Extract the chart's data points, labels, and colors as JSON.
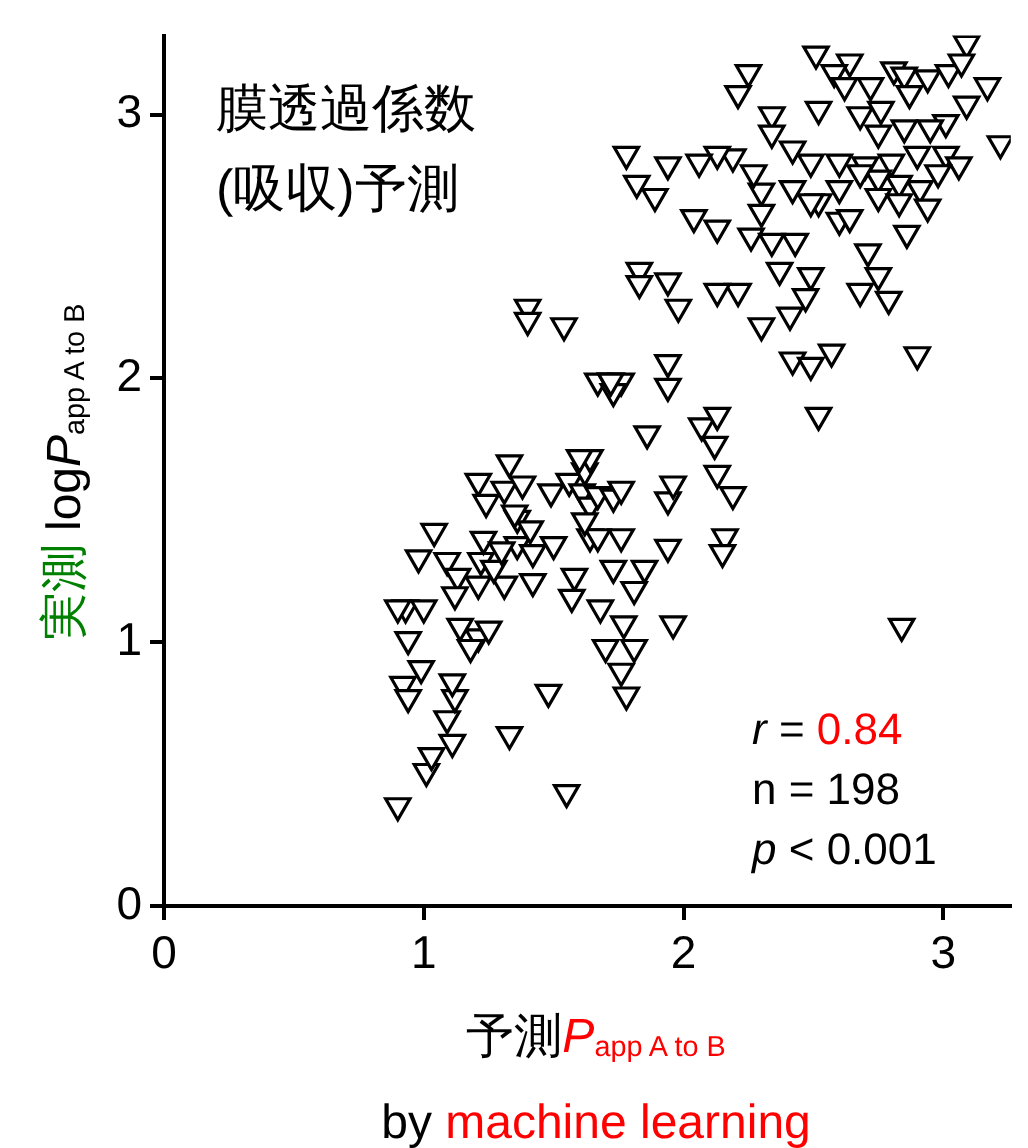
{
  "chart_data": {
    "type": "scatter",
    "title": "膜透過係数(吸収)予測",
    "xlabel": "予測P$_{app A to B}$\nby machine learning",
    "ylabel": "実測 logP$_{app A to B}$",
    "annotations": [
      "r = 0.84",
      "n = 198",
      "p < 0.001"
    ],
    "xlim": [
      0,
      3.26
    ],
    "ylim": [
      0,
      3.3
    ],
    "xticks": [
      0,
      1,
      2,
      3
    ],
    "yticks": [
      0,
      1,
      2,
      3
    ],
    "grid": false,
    "legend": false,
    "marker": "triangle",
    "series": [
      {
        "color": "#000000",
        "x": [
          0.9,
          1.01,
          1.03,
          1.11,
          1.09,
          1.12,
          1.11,
          0.92,
          0.99,
          0.94,
          0.93,
          0.9,
          0.98,
          1.33,
          1.55,
          1.21,
          1.18,
          1.25,
          1.14,
          1.21,
          1.22,
          1.31,
          1.27,
          1.23,
          1.21,
          1.33,
          1.31,
          1.36,
          1.38,
          1.36,
          1.3,
          1.42,
          1.42,
          1.41,
          1.49,
          1.5,
          1.58,
          1.57,
          1.56,
          1.62,
          1.64,
          1.61,
          1.64,
          1.67,
          1.67,
          1.73,
          1.76,
          1.76,
          1.73,
          1.68,
          1.81,
          1.81,
          1.7,
          1.76,
          1.78,
          1.64,
          1.6,
          1.77,
          1.85,
          1.96,
          1.94,
          1.94,
          1.96,
          2.13,
          2.07,
          2.16,
          2.19,
          2.12,
          2.15,
          1.4,
          1.4,
          1.54,
          1.67,
          1.72,
          1.76,
          1.94,
          1.73,
          1.86,
          1.35,
          1.24,
          1.09,
          1.13,
          1.04,
          1.0,
          0.94,
          1.12,
          1.48,
          1.62,
          2.51,
          2.64,
          2.58,
          2.62,
          2.72,
          2.81,
          2.85,
          2.94,
          3.02,
          3.09,
          3.07,
          3.17,
          3.09,
          2.25,
          2.21,
          2.52,
          2.68,
          2.76,
          2.87,
          3.01,
          2.95,
          2.85,
          2.75,
          2.34,
          2.34,
          2.42,
          2.49,
          2.6,
          2.7,
          2.8,
          2.9,
          3.01,
          3.06,
          2.98,
          2.91,
          2.83,
          2.75,
          2.68,
          2.6,
          2.52,
          2.49,
          2.42,
          2.3,
          2.27,
          2.19,
          2.13,
          2.06,
          1.94,
          1.78,
          1.82,
          1.89,
          2.04,
          2.13,
          2.26,
          2.34,
          2.43,
          2.3,
          2.6,
          2.64,
          2.75,
          2.83,
          2.94,
          2.86,
          2.71,
          2.75,
          2.79,
          2.68,
          2.49,
          2.47,
          2.37,
          2.41,
          2.3,
          2.21,
          2.13,
          1.98,
          1.94,
          1.83,
          1.83,
          2.42,
          2.49,
          2.57,
          2.9,
          3.22,
          1.72,
          1.94,
          2.13,
          2.52,
          2.84
        ],
        "values": [
          0.38,
          0.51,
          0.57,
          0.62,
          0.71,
          0.79,
          0.85,
          0.84,
          0.9,
          0.79,
          1.13,
          1.13,
          1.32,
          0.65,
          0.43,
          1.02,
          0.98,
          1.05,
          1.06,
          1.22,
          1.31,
          1.22,
          1.28,
          1.39,
          1.61,
          1.68,
          1.58,
          1.47,
          1.6,
          1.37,
          1.35,
          1.23,
          1.34,
          1.43,
          1.57,
          1.37,
          1.25,
          1.17,
          1.61,
          1.65,
          1.4,
          1.57,
          1.52,
          1.56,
          1.4,
          1.55,
          1.58,
          1.4,
          1.28,
          1.13,
          1.2,
          0.98,
          0.98,
          0.89,
          0.8,
          1.7,
          1.7,
          1.07,
          1.28,
          1.07,
          1.36,
          1.54,
          1.6,
          1.64,
          1.82,
          1.4,
          1.56,
          1.75,
          1.34,
          2.27,
          2.22,
          2.2,
          1.99,
          1.99,
          1.99,
          2.06,
          1.95,
          1.79,
          1.49,
          1.53,
          1.31,
          1.25,
          1.42,
          1.13,
          1.01,
          1.18,
          0.81,
          1.46,
          3.23,
          3.2,
          3.16,
          3.11,
          3.11,
          3.17,
          3.15,
          3.14,
          3.16,
          3.27,
          3.2,
          3.11,
          3.04,
          3.16,
          3.08,
          3.02,
          3.0,
          3.02,
          3.08,
          2.97,
          2.95,
          2.95,
          2.93,
          3.0,
          2.93,
          2.87,
          2.82,
          2.82,
          2.81,
          2.82,
          2.85,
          2.85,
          2.81,
          2.78,
          2.72,
          2.74,
          2.76,
          2.78,
          2.72,
          2.67,
          2.67,
          2.72,
          2.71,
          2.78,
          2.84,
          2.85,
          2.82,
          2.81,
          2.85,
          2.74,
          2.69,
          2.61,
          2.57,
          2.54,
          2.52,
          2.52,
          2.63,
          2.6,
          2.61,
          2.69,
          2.67,
          2.65,
          2.55,
          2.48,
          2.39,
          2.3,
          2.33,
          2.39,
          2.31,
          2.41,
          2.24,
          2.2,
          2.33,
          2.33,
          2.27,
          2.37,
          2.41,
          2.36,
          2.07,
          2.05,
          2.1,
          2.09,
          2.89,
          1.99,
          1.97,
          1.86,
          1.86,
          1.06
        ]
      }
    ]
  }
}
